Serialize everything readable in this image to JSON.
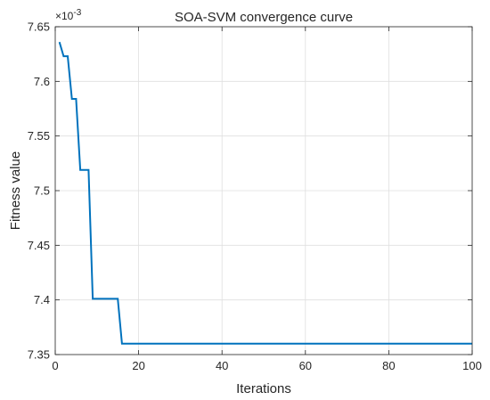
{
  "chart_data": {
    "type": "line",
    "title": "SOA-SVM convergence curve",
    "xlabel": "Iterations",
    "ylabel": "Fitness value",
    "y_exponent_label": "×10",
    "y_exponent_power": "-3",
    "xlim": [
      0,
      100
    ],
    "ylim": [
      7.35,
      7.65
    ],
    "x_ticks": [
      0,
      20,
      40,
      60,
      80,
      100
    ],
    "x_tick_labels": [
      "0",
      "20",
      "40",
      "60",
      "80",
      "100"
    ],
    "y_ticks": [
      7.35,
      7.4,
      7.45,
      7.5,
      7.55,
      7.6,
      7.65
    ],
    "y_tick_labels": [
      "7.35",
      "7.4",
      "7.45",
      "7.5",
      "7.55",
      "7.6",
      "7.65"
    ],
    "grid": true,
    "line_color": "#0072BD",
    "series": [
      {
        "x": [
          1,
          2,
          3,
          4,
          5,
          6,
          7,
          8,
          9,
          10,
          11,
          12,
          13,
          14,
          15,
          16,
          17,
          100
        ],
        "y": [
          7.636,
          7.623,
          7.623,
          7.584,
          7.584,
          7.519,
          7.519,
          7.519,
          7.401,
          7.401,
          7.401,
          7.401,
          7.401,
          7.401,
          7.401,
          7.36,
          7.36,
          7.36
        ]
      }
    ]
  }
}
